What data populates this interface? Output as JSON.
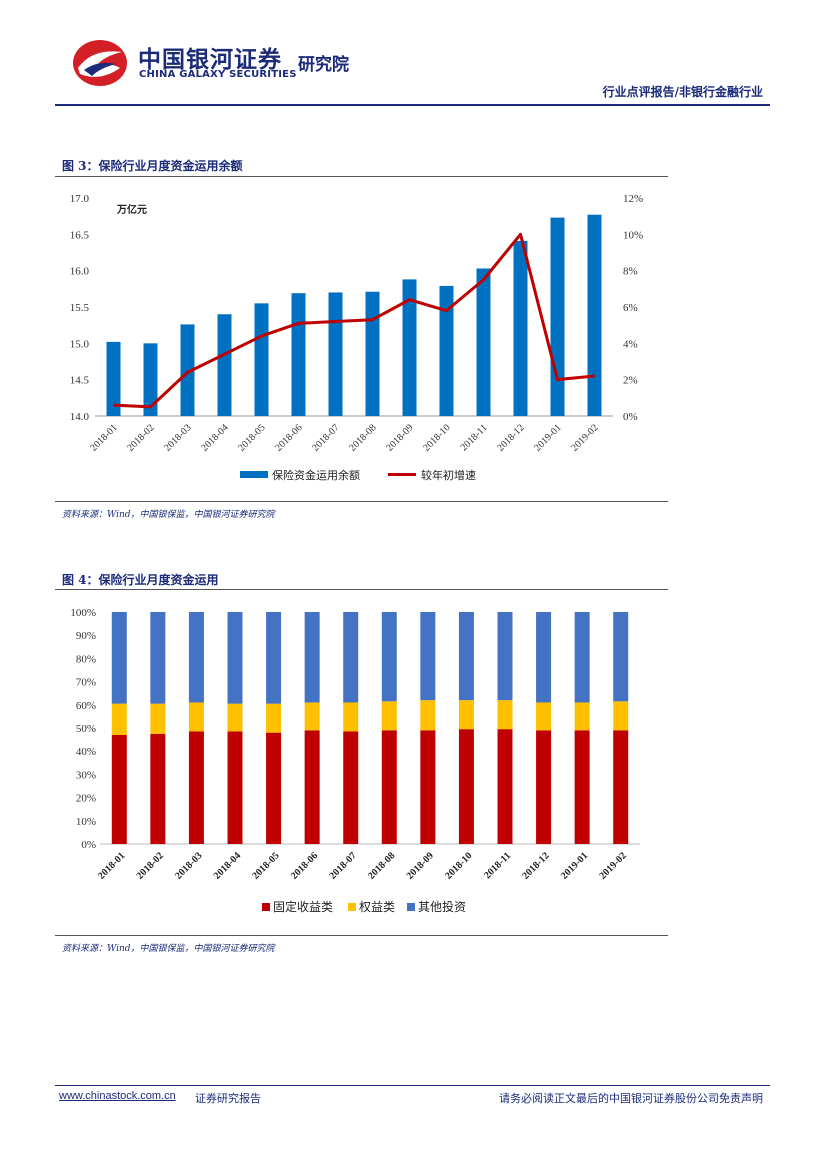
{
  "header": {
    "logo_cn": "中国银河证券",
    "logo_en": "CHINA GALAXY SECURITIES",
    "institute": "研究院",
    "report_category": "行业点评报告/非银行金融行业"
  },
  "figure3": {
    "title": "图 3：保险行业月度资金运用余额",
    "source": "资料来源：Wind，中国银保监，中国银河证券研究院"
  },
  "figure4": {
    "title": "图 4：保险行业月度资金运用",
    "source": "资料来源：Wind，中国银保监，中国银河证券研究院"
  },
  "footer": {
    "link": "www.chinastock.com.cn",
    "left_text": "证券研究报告",
    "disclaimer": "请务必阅读正文最后的中国银河证券股份公司免责声明"
  },
  "colors": {
    "brand": "#1b2b7a",
    "bar_blue": "#0070c0",
    "line_red": "#c00000",
    "fixed_income": "#c00000",
    "equity": "#ffc000",
    "other": "#4472c4"
  },
  "chart_data": [
    {
      "type": "bar",
      "unit_label": "万亿元",
      "categories": [
        "2018-01",
        "2018-02",
        "2018-03",
        "2018-04",
        "2018-05",
        "2018-06",
        "2018-07",
        "2018-08",
        "2018-09",
        "2018-10",
        "2018-11",
        "2018-12",
        "2019-01",
        "2019-02"
      ],
      "series": [
        {
          "name": "保险资金运用余额",
          "kind": "bar",
          "axis": "left",
          "values": [
            15.02,
            15.0,
            15.26,
            15.4,
            15.55,
            15.69,
            15.7,
            15.71,
            15.88,
            15.79,
            16.03,
            16.41,
            16.73,
            16.77
          ]
        },
        {
          "name": "较年初增速",
          "kind": "line",
          "axis": "right",
          "values": [
            0.6,
            0.5,
            2.4,
            3.4,
            4.4,
            5.1,
            5.2,
            5.3,
            6.4,
            5.8,
            7.5,
            10.0,
            2.0,
            2.2
          ]
        }
      ],
      "left_axis": {
        "min": 14.0,
        "max": 17.0,
        "ticks": [
          "14.0",
          "14.5",
          "15.0",
          "15.5",
          "16.0",
          "16.5",
          "17.0"
        ]
      },
      "right_axis": {
        "min": 0,
        "max": 12,
        "ticks": [
          "0%",
          "2%",
          "4%",
          "6%",
          "8%",
          "10%",
          "12%"
        ]
      }
    },
    {
      "type": "bar",
      "stacked": true,
      "categories": [
        "2018-01",
        "2018-02",
        "2018-03",
        "2018-04",
        "2018-05",
        "2018-06",
        "2018-07",
        "2018-08",
        "2018-09",
        "2018-10",
        "2018-11",
        "2018-12",
        "2019-01",
        "2019-02"
      ],
      "series": [
        {
          "name": "固定收益类",
          "values": [
            47,
            47.5,
            48.5,
            48.5,
            48,
            49,
            48.5,
            49,
            49,
            49.5,
            49.5,
            49,
            49,
            49
          ]
        },
        {
          "name": "权益类",
          "values": [
            13.5,
            13,
            12.5,
            12,
            12.5,
            12,
            12.5,
            12.5,
            13,
            12.5,
            12.5,
            12,
            12,
            12.5
          ]
        },
        {
          "name": "其他投资",
          "values": [
            39.5,
            39.5,
            39,
            39.5,
            39.5,
            39,
            39,
            38.5,
            38,
            38,
            38,
            39,
            39,
            38.5
          ]
        }
      ],
      "y_axis": {
        "min": 0,
        "max": 100,
        "ticks": [
          "0%",
          "10%",
          "20%",
          "30%",
          "40%",
          "50%",
          "60%",
          "70%",
          "80%",
          "90%",
          "100%"
        ]
      }
    }
  ]
}
